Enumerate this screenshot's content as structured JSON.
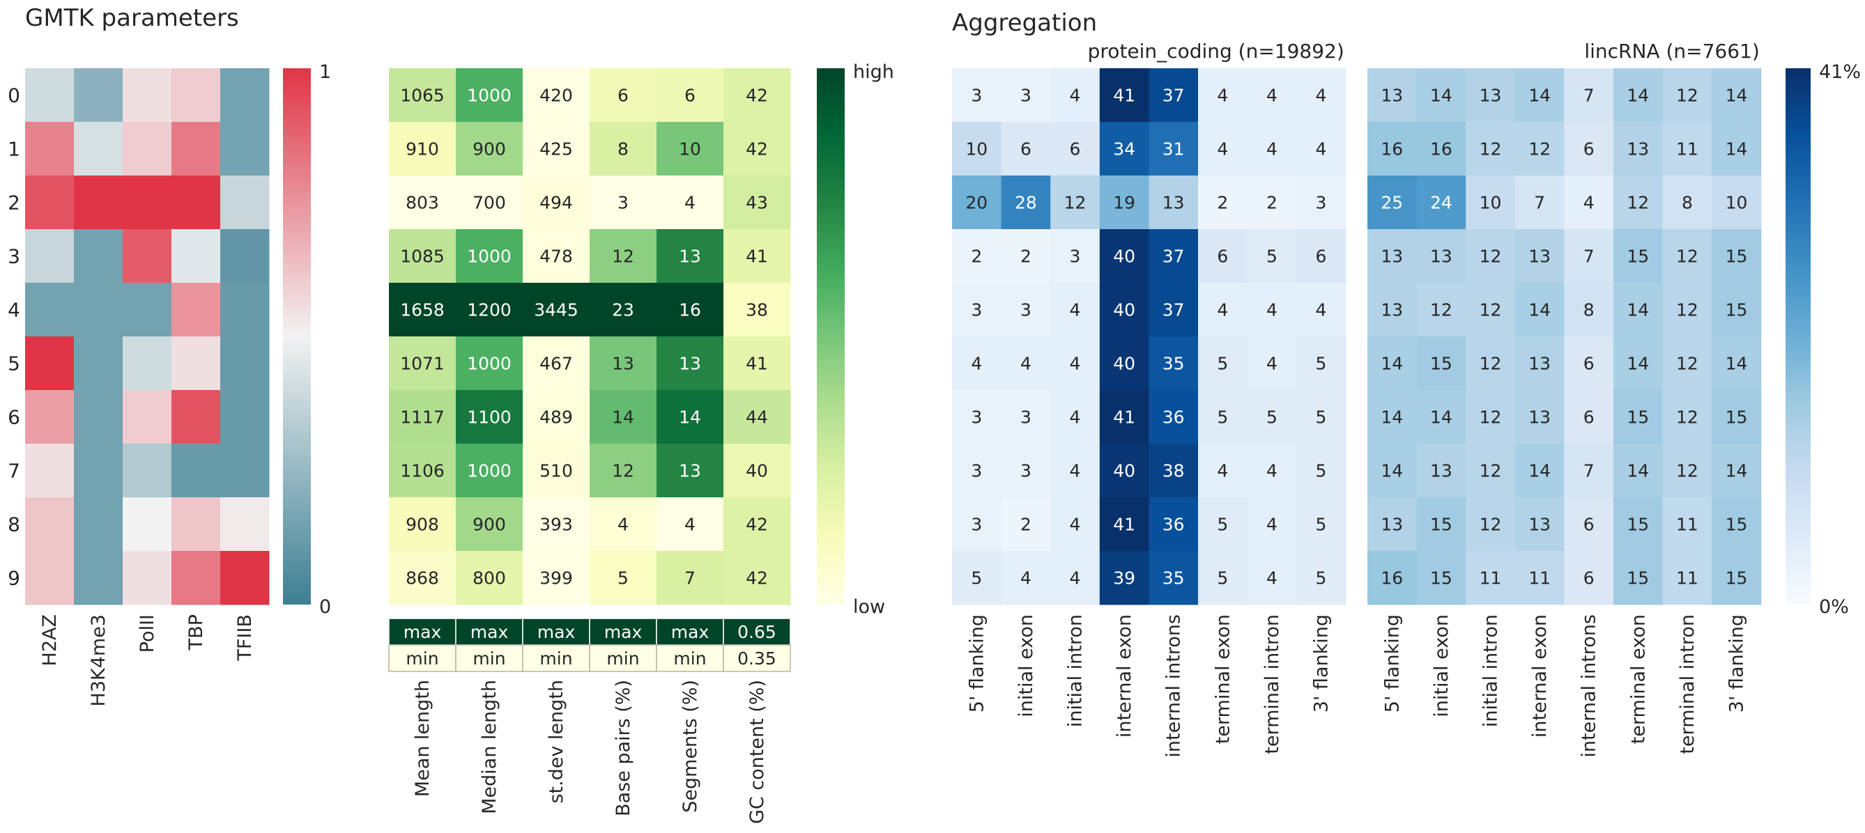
{
  "chart_data": [
    {
      "type": "heatmap",
      "title": "GMTK parameters",
      "row_labels": [
        "0",
        "1",
        "2",
        "3",
        "4",
        "5",
        "6",
        "7",
        "8",
        "9"
      ],
      "col_labels": [
        "H2AZ",
        "H3K4me3",
        "PolII",
        "TBP",
        "TFIIB"
      ],
      "values": [
        [
          0.4,
          0.22,
          0.55,
          0.6,
          0.15
        ],
        [
          0.8,
          0.42,
          0.6,
          0.82,
          0.15
        ],
        [
          0.92,
          1.0,
          1.0,
          1.0,
          0.38
        ],
        [
          0.38,
          0.15,
          0.9,
          0.45,
          0.1
        ],
        [
          0.15,
          0.15,
          0.15,
          0.75,
          0.12
        ],
        [
          1.0,
          0.15,
          0.4,
          0.55,
          0.12
        ],
        [
          0.72,
          0.15,
          0.6,
          0.92,
          0.12
        ],
        [
          0.55,
          0.15,
          0.32,
          0.12,
          0.12
        ],
        [
          0.62,
          0.15,
          0.5,
          0.62,
          0.52
        ],
        [
          0.62,
          0.15,
          0.55,
          0.82,
          1.0
        ]
      ],
      "colorbar": {
        "min_label": "0",
        "max_label": "1",
        "low_color": "#3d7f93",
        "mid_color": "#f2f2f2",
        "high_color": "#e03547"
      }
    },
    {
      "type": "heatmap",
      "col_labels": [
        "Mean length",
        "Median length",
        "st.dev length",
        "Base pairs (%)",
        "Segments (%)",
        "GC content (%)"
      ],
      "values": [
        [
          1065,
          1000,
          420,
          6,
          6,
          42
        ],
        [
          910,
          900,
          425,
          8,
          10,
          42
        ],
        [
          803,
          700,
          494,
          3,
          4,
          43
        ],
        [
          1085,
          1000,
          478,
          12,
          13,
          41
        ],
        [
          1658,
          1200,
          3445,
          23,
          16,
          38
        ],
        [
          1071,
          1000,
          467,
          13,
          13,
          41
        ],
        [
          1117,
          1100,
          489,
          14,
          14,
          44
        ],
        [
          1106,
          1000,
          510,
          12,
          13,
          40
        ],
        [
          908,
          900,
          393,
          4,
          4,
          42
        ],
        [
          868,
          800,
          399,
          5,
          7,
          42
        ]
      ],
      "scale_rows": [
        {
          "labels": [
            "max",
            "max",
            "max",
            "max",
            "max",
            "0.65"
          ]
        },
        {
          "labels": [
            "min",
            "min",
            "min",
            "min",
            "min",
            "0.35"
          ]
        }
      ],
      "colorbar": {
        "min_label": "low",
        "max_label": "high",
        "low_color": "#ffffe5",
        "high_color": "#004529"
      }
    },
    {
      "type": "heatmap",
      "title": "Aggregation",
      "panels": [
        {
          "name": "protein_coding (n=19892)",
          "col_labels": [
            "5' flanking",
            "initial exon",
            "initial intron",
            "internal exon",
            "internal introns",
            "terminal exon",
            "terminal intron",
            "3' flanking"
          ],
          "values": [
            [
              3,
              3,
              4,
              41,
              37,
              4,
              4,
              4
            ],
            [
              10,
              6,
              6,
              34,
              31,
              4,
              4,
              4
            ],
            [
              20,
              28,
              12,
              19,
              13,
              2,
              2,
              3
            ],
            [
              2,
              2,
              3,
              40,
              37,
              6,
              5,
              6
            ],
            [
              3,
              3,
              4,
              40,
              37,
              4,
              4,
              4
            ],
            [
              4,
              4,
              4,
              40,
              35,
              5,
              4,
              5
            ],
            [
              3,
              3,
              4,
              41,
              36,
              5,
              5,
              5
            ],
            [
              3,
              3,
              4,
              40,
              38,
              4,
              4,
              5
            ],
            [
              3,
              2,
              4,
              41,
              36,
              5,
              4,
              5
            ],
            [
              5,
              4,
              4,
              39,
              35,
              5,
              4,
              5
            ]
          ]
        },
        {
          "name": "lincRNA (n=7661)",
          "col_labels": [
            "5' flanking",
            "initial exon",
            "initial intron",
            "internal exon",
            "internal introns",
            "terminal exon",
            "terminal intron",
            "3' flanking"
          ],
          "values": [
            [
              13,
              14,
              13,
              14,
              7,
              14,
              12,
              14
            ],
            [
              16,
              16,
              12,
              12,
              6,
              13,
              11,
              14
            ],
            [
              25,
              24,
              10,
              7,
              4,
              12,
              8,
              10
            ],
            [
              13,
              13,
              12,
              13,
              7,
              15,
              12,
              15
            ],
            [
              13,
              12,
              12,
              14,
              8,
              14,
              12,
              15
            ],
            [
              14,
              15,
              12,
              13,
              6,
              14,
              12,
              14
            ],
            [
              14,
              14,
              12,
              13,
              6,
              15,
              12,
              15
            ],
            [
              14,
              13,
              12,
              14,
              7,
              14,
              12,
              14
            ],
            [
              13,
              15,
              12,
              13,
              6,
              15,
              11,
              15
            ],
            [
              16,
              15,
              11,
              11,
              6,
              15,
              11,
              15
            ]
          ]
        }
      ],
      "colorbar": {
        "min_label": "0%",
        "max_label": "41%",
        "low_color": "#f7fbff",
        "high_color": "#08306b"
      }
    }
  ]
}
